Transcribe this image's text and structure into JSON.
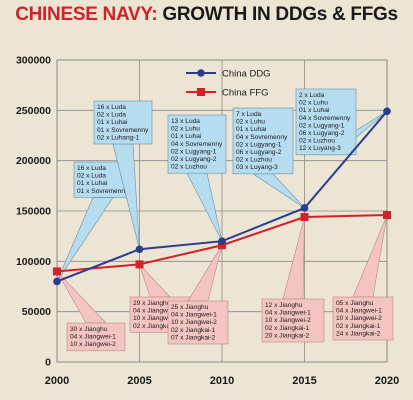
{
  "title": {
    "part1": "CHINESE NAVY:",
    "part2": " GROWTH IN DDGs & FFGs"
  },
  "colors": {
    "ddg": "#2a3d8f",
    "ffg": "#d42027",
    "blue_box": "#b6dcef",
    "pink_box": "#f4c4c0",
    "grid": "#8a8a8a"
  },
  "chart_data": {
    "type": "line",
    "title": "CHINESE NAVY: GROWTH IN DDGs & FFGs",
    "x": [
      2000,
      2005,
      2010,
      2015,
      2020
    ],
    "x_tick_labels": [
      "2000",
      "2005",
      "2010",
      "2015",
      "2020"
    ],
    "ylim": [
      0,
      300000
    ],
    "y_ticks": [
      0,
      50000,
      100000,
      150000,
      200000,
      250000,
      300000
    ],
    "y_tick_labels": [
      "0",
      "50000",
      "100000",
      "150000",
      "200000",
      "250000",
      "300000"
    ],
    "grid": true,
    "legend_position": "top-center",
    "series": [
      {
        "name": "China DDG",
        "values": [
          80000,
          112000,
          120000,
          153000,
          249000
        ]
      },
      {
        "name": "China FFG",
        "values": [
          90000,
          97000,
          116000,
          144000,
          146000
        ]
      }
    ],
    "annotations_ddg": [
      [
        "16 x Luda",
        "02 x Luda",
        "01 x Luhai",
        "01 x Sovremenny"
      ],
      [
        "16 x Luda",
        "02 x Luda",
        "01 x Luhai",
        "01 x Sovremenny",
        "02 x Luhang-1"
      ],
      [
        "13 x Luda",
        "02 x Luhu",
        "01 x Luhai",
        "04 x Sovremenny",
        "02 x Lugyang-1",
        "02 x Lugyang-2",
        "02 x Luzhou"
      ],
      [
        "7 x Luda",
        "02 x Luhu",
        "01 x Luhai",
        "04 x Sovremenny",
        "02 x Lugyang-1",
        "06 x Lugyang-2",
        "02 x Luzhou",
        "03 x Luyang-3"
      ],
      [
        "2 x Luda",
        "02 x Luhu",
        "01 x Luhai",
        "04 x Sovremenny",
        "02 x Lugyang-1",
        "06 x Lugyang-2",
        "02 x Luzhou",
        "12 x Luyang-3"
      ]
    ],
    "annotations_ffg": [
      [
        "30 x Jianghu",
        "04 x Jiangwei-1",
        "10 x Jiangwei-2"
      ],
      [
        "29 x Jianghu",
        "04 x Jiangwei-1",
        "10 x Jiangwei-2",
        "02 x Jiangkai-1"
      ],
      [
        "25 x Jianghu",
        "04 x Jiangwei-1",
        "10 x Jiangwei-2",
        "02 x Jiangkai-1",
        "07 x Jiangkai-2"
      ],
      [
        "12 x Jianghu",
        "04 x Jiangwei-1",
        "10 x Jiangwei-2",
        "02 x Jiangkai-1",
        "20 x Jiangkai-2"
      ],
      [
        "05 x Jianghu",
        "04 x Jiangwei-1",
        "10 x Jiangwei-2",
        "02 x Jiangkai-1",
        "24 x Jiangkai-2"
      ]
    ]
  }
}
